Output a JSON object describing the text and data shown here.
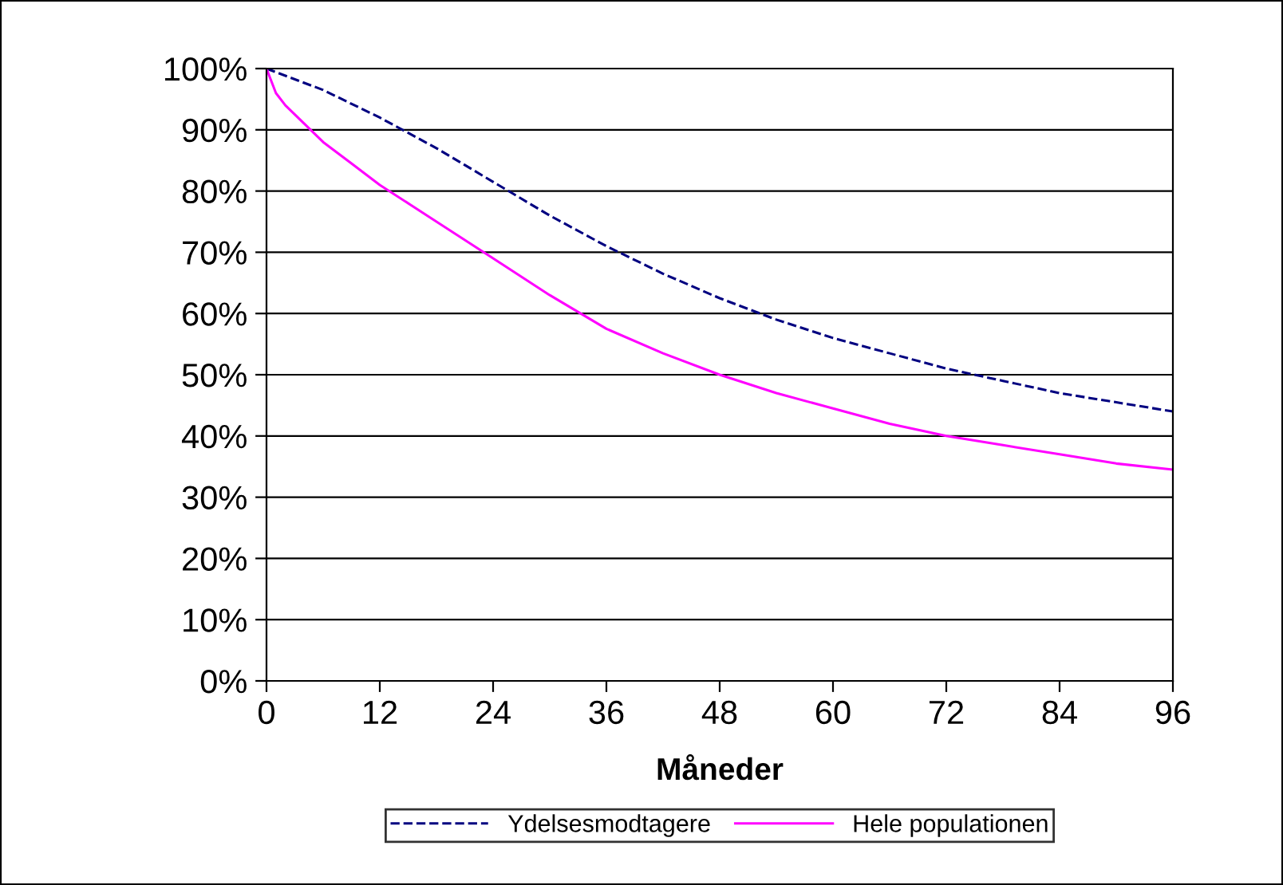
{
  "chart_data": {
    "type": "line",
    "xlabel": "Måneder",
    "xlim": [
      0,
      96
    ],
    "xticks": [
      0,
      12,
      24,
      36,
      48,
      60,
      72,
      84,
      96
    ],
    "ylim": [
      0,
      100
    ],
    "yticks": [
      {
        "value": 0,
        "label": "0%"
      },
      {
        "value": 10,
        "label": "10%"
      },
      {
        "value": 20,
        "label": "20%"
      },
      {
        "value": 30,
        "label": "30%"
      },
      {
        "value": 40,
        "label": "40%"
      },
      {
        "value": 50,
        "label": "50%"
      },
      {
        "value": 60,
        "label": "60%"
      },
      {
        "value": 70,
        "label": "70%"
      },
      {
        "value": 80,
        "label": "80%"
      },
      {
        "value": 90,
        "label": "90%"
      },
      {
        "value": 100,
        "label": "100%"
      }
    ],
    "grid": "y",
    "legend": "bottom",
    "marker": "none",
    "series": [
      {
        "name": "Ydelsesmodtagere",
        "color": "#000080",
        "line_style": "dashed",
        "x": [
          0,
          6,
          12,
          18,
          24,
          30,
          36,
          42,
          48,
          54,
          60,
          66,
          72,
          78,
          84,
          90,
          96
        ],
        "values": [
          100,
          96.5,
          92,
          87,
          81.5,
          76,
          71,
          66.5,
          62.5,
          59,
          56,
          53.5,
          51,
          49,
          47,
          45.5,
          44
        ]
      },
      {
        "name": "Hele populationen",
        "color": "#ff00ff",
        "line_style": "solid",
        "x": [
          0,
          1,
          2,
          4,
          6,
          9,
          12,
          18,
          24,
          30,
          36,
          42,
          48,
          54,
          60,
          66,
          72,
          78,
          84,
          90,
          96
        ],
        "values": [
          100,
          96,
          94,
          91,
          88,
          84.5,
          81,
          75,
          69,
          63,
          57.5,
          53.5,
          50,
          47,
          44.5,
          42,
          40,
          38.5,
          37,
          35.5,
          34.5
        ]
      }
    ]
  }
}
